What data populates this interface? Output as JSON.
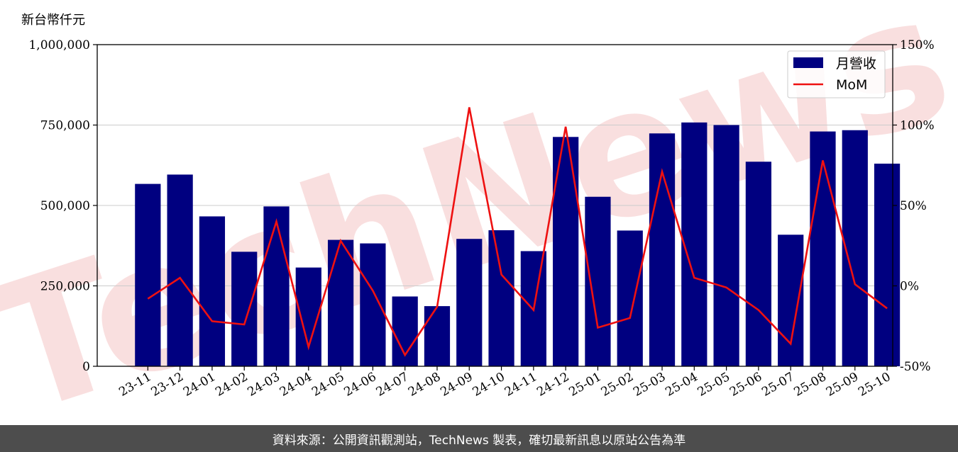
{
  "watermark": "TechNews",
  "footer": {
    "source_text": "資料來源：公開資訊觀測站，TechNews 製表，確切最新訊息以原站公告為準"
  },
  "colors": {
    "bar": "#000080",
    "line": "#ee1111",
    "grid": "#cccccc",
    "watermark_red": "#f5c6c6",
    "watermark_gray": "#e0e0e0"
  },
  "chart_data": {
    "type": "bar",
    "ylabel": "新台幣仟元",
    "categories": [
      "23-11",
      "23-12",
      "24-01",
      "24-02",
      "24-03",
      "24-04",
      "24-05",
      "24-06",
      "24-07",
      "24-08",
      "24-09",
      "24-10",
      "24-11",
      "24-12",
      "25-01",
      "25-02",
      "25-03",
      "25-04",
      "25-05",
      "25-06",
      "25-07",
      "25-08",
      "25-09",
      "25-10"
    ],
    "series": [
      {
        "name": "月營收",
        "type": "bar",
        "axis": "left",
        "values": [
          567000,
          596000,
          466000,
          356000,
          497000,
          307000,
          393000,
          382000,
          217000,
          187000,
          396000,
          423000,
          358000,
          713000,
          527000,
          422000,
          724000,
          758000,
          750000,
          636000,
          409000,
          730000,
          734000,
          630000
        ]
      },
      {
        "name": "MoM",
        "type": "line",
        "axis": "right",
        "unit": "%",
        "values": [
          -8,
          5,
          -22,
          -24,
          40,
          -38,
          28,
          -3,
          -43,
          -13,
          111,
          7,
          -15,
          99,
          -26,
          -20,
          71,
          5,
          -1,
          -15,
          -36,
          78,
          1,
          -14
        ]
      }
    ],
    "ylim_left": [
      0,
      1000000
    ],
    "yticks_left": [
      0,
      250000,
      500000,
      750000,
      1000000
    ],
    "ytick_labels_left": [
      "0",
      "250,000",
      "500,000",
      "750,000",
      "1,000,000"
    ],
    "ylim_right": [
      -50,
      150
    ],
    "yticks_right": [
      -50,
      0,
      50,
      100,
      150
    ],
    "ytick_labels_right": [
      "-50%",
      "0%",
      "50%",
      "100%",
      "150%"
    ],
    "grid": "horizontal",
    "legend": "top-right"
  }
}
